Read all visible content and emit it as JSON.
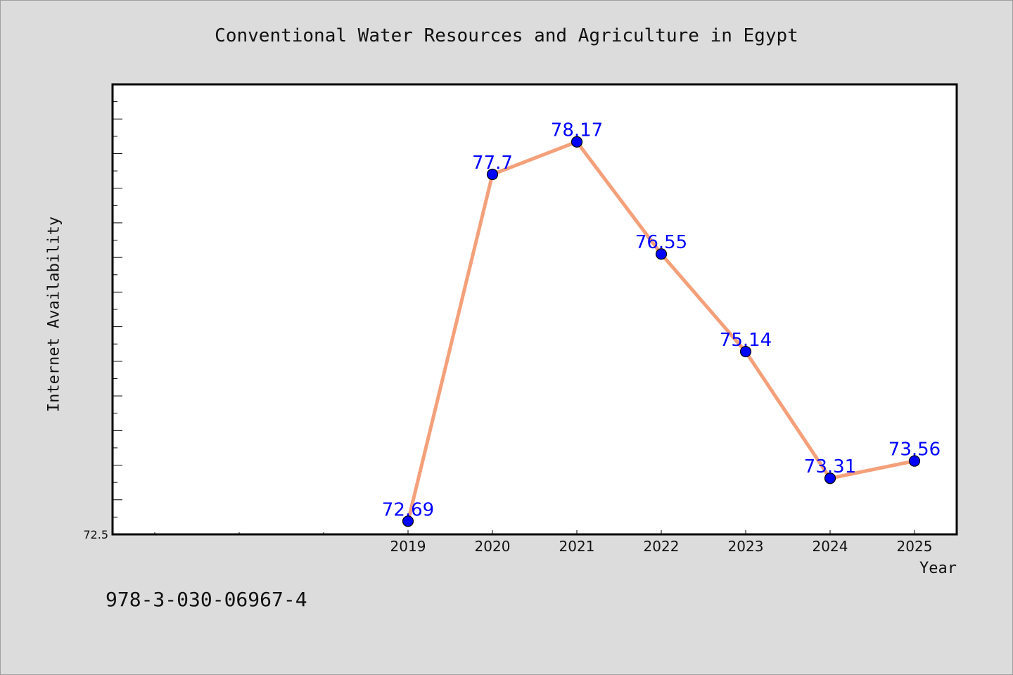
{
  "chart_data": {
    "type": "line",
    "title": "Conventional Water Resources and Agriculture in Egypt",
    "xlabel": "Year",
    "ylabel": "Internet Availability",
    "x": [
      "2019",
      "2020",
      "2021",
      "2022",
      "2023",
      "2024",
      "2025"
    ],
    "values": [
      72.69,
      77.7,
      78.17,
      76.55,
      75.14,
      73.31,
      73.56
    ],
    "data_labels": [
      "72.69",
      "77.7",
      "78.17",
      "76.55",
      "75.14",
      "73.31",
      "73.56"
    ],
    "ylim": [
      72.5,
      79.0
    ],
    "ytick_labels": [
      "72.5"
    ],
    "grid": false,
    "colors": {
      "line": "#f4a07a",
      "marker": "#0000ff",
      "marker_edge": "#000000",
      "data_label": "#0000ff",
      "background": "#dcdcdc",
      "plot_area": "#ffffff"
    }
  },
  "footer": {
    "isbn": "978-3-030-06967-4"
  }
}
